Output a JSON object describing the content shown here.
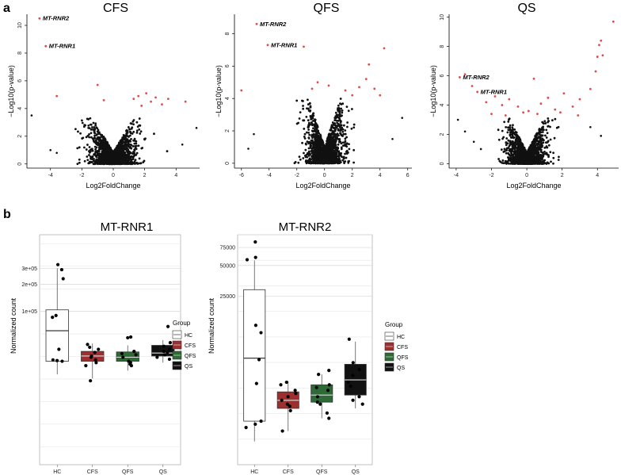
{
  "panels": {
    "a": "a",
    "b": "b"
  },
  "colors": {
    "point": "#111111",
    "sig_point": "#e04b4b",
    "HC": "#ffffff",
    "CFS": "#9e2f2f",
    "QFS": "#2d6a36",
    "QS": "#111111",
    "grid": "#e6e6e6"
  },
  "chart_data": [
    {
      "type": "scatter",
      "title": "CFS",
      "xlabel": "Log2FoldChange",
      "ylabel": "−Log10(p-value)",
      "xlim": [
        -5.5,
        5.5
      ],
      "ylim": [
        -0.3,
        10.8
      ],
      "xticks": [
        -4,
        -2,
        0,
        2,
        4
      ],
      "yticks": [
        0,
        2,
        4,
        6,
        8,
        10
      ],
      "cloud": {
        "spread_x": 1.9,
        "max_y": 3.3
      },
      "significant_points": [
        [
          -4.7,
          10.5
        ],
        [
          -4.3,
          8.5
        ],
        [
          -3.6,
          4.9
        ],
        [
          -1.0,
          5.7
        ],
        [
          -0.6,
          4.6
        ],
        [
          1.3,
          4.7
        ],
        [
          1.6,
          4.9
        ],
        [
          2.1,
          5.1
        ],
        [
          2.4,
          4.5
        ],
        [
          2.7,
          4.8
        ],
        [
          3.1,
          4.3
        ],
        [
          3.5,
          4.7
        ],
        [
          4.6,
          4.5
        ],
        [
          1.8,
          4.2
        ]
      ],
      "extra_points": [
        [
          -5.2,
          3.5
        ],
        [
          5.3,
          2.6
        ],
        [
          -4.0,
          1.0
        ],
        [
          -3.6,
          0.8
        ],
        [
          4.4,
          1.4
        ]
      ],
      "annotations": [
        {
          "label": "MT-RNR2",
          "x": -4.7,
          "y": 10.5
        },
        {
          "label": "MT-RNR1",
          "x": -4.3,
          "y": 8.5
        }
      ]
    },
    {
      "type": "scatter",
      "title": "QFS",
      "xlabel": "Log2FoldChange",
      "ylabel": "−Log10(p-value)",
      "xlim": [
        -6.5,
        6.3
      ],
      "ylim": [
        -0.3,
        9.2
      ],
      "xticks": [
        -6,
        -4,
        -2,
        0,
        2,
        4,
        6
      ],
      "yticks": [
        0,
        2,
        4,
        6,
        8
      ],
      "cloud": {
        "spread_x": 1.7,
        "max_y": 4.0
      },
      "significant_points": [
        [
          -4.9,
          8.6
        ],
        [
          -4.1,
          7.3
        ],
        [
          -1.5,
          7.2
        ],
        [
          -6.0,
          4.5
        ],
        [
          -0.5,
          5.0
        ],
        [
          -0.9,
          4.6
        ],
        [
          0.3,
          4.8
        ],
        [
          1.5,
          4.5
        ],
        [
          2.0,
          4.2
        ],
        [
          2.5,
          4.7
        ],
        [
          3.0,
          5.2
        ],
        [
          3.2,
          6.1
        ],
        [
          3.6,
          4.6
        ],
        [
          4.0,
          4.2
        ],
        [
          4.3,
          7.1
        ]
      ],
      "extra_points": [
        [
          -5.1,
          1.8
        ],
        [
          5.6,
          2.8
        ],
        [
          4.9,
          1.5
        ],
        [
          -5.5,
          0.9
        ]
      ],
      "annotations": [
        {
          "label": "MT-RNR2",
          "x": -4.9,
          "y": 8.6
        },
        {
          "label": "MT-RNR1",
          "x": -4.1,
          "y": 7.3
        }
      ]
    },
    {
      "type": "scatter",
      "title": "QS",
      "xlabel": "Log2FoldChange",
      "ylabel": "−Log10(p-value)",
      "xlim": [
        -4.4,
        5.2
      ],
      "ylim": [
        -0.3,
        10.2
      ],
      "xticks": [
        -4,
        -2,
        0,
        2,
        4
      ],
      "yticks": [
        0,
        2,
        4,
        6,
        8,
        10
      ],
      "cloud": {
        "spread_x": 1.45,
        "max_y": 3.1
      },
      "significant_points": [
        [
          -3.8,
          5.9
        ],
        [
          -3.5,
          6.1
        ],
        [
          -3.1,
          5.3
        ],
        [
          -2.8,
          4.9
        ],
        [
          -2.3,
          4.2
        ],
        [
          -1.8,
          4.6
        ],
        [
          -1.4,
          4.0
        ],
        [
          -1.0,
          4.4
        ],
        [
          -0.5,
          3.9
        ],
        [
          0.4,
          5.8
        ],
        [
          0.8,
          4.1
        ],
        [
          1.2,
          4.5
        ],
        [
          1.6,
          3.7
        ],
        [
          2.1,
          4.8
        ],
        [
          2.6,
          3.9
        ],
        [
          3.0,
          4.4
        ],
        [
          3.6,
          5.1
        ],
        [
          3.9,
          6.3
        ],
        [
          4.0,
          7.3
        ],
        [
          4.1,
          8.1
        ],
        [
          4.2,
          8.4
        ],
        [
          4.3,
          7.4
        ],
        [
          4.9,
          9.7
        ],
        [
          -0.2,
          3.5
        ],
        [
          0.1,
          3.6
        ],
        [
          -2.0,
          3.4
        ],
        [
          1.9,
          3.5
        ],
        [
          2.9,
          3.3
        ],
        [
          -1.2,
          3.3
        ],
        [
          0.6,
          3.4
        ]
      ],
      "extra_points": [
        [
          -3.9,
          3.0
        ],
        [
          -3.5,
          2.2
        ],
        [
          -3.0,
          1.5
        ],
        [
          3.6,
          2.5
        ],
        [
          4.2,
          1.9
        ],
        [
          -2.6,
          1.0
        ]
      ],
      "annotations": [
        {
          "label": "MT-RNR2",
          "x": -3.8,
          "y": 5.9
        },
        {
          "label": "MT-RNR1",
          "x": -2.8,
          "y": 4.9
        }
      ]
    },
    {
      "type": "boxplot",
      "title": "MT-RNR1",
      "ylabel": "Normalized count",
      "categories": [
        "HC",
        "CFS",
        "QFS",
        "QS"
      ],
      "y_tick_labels": [
        "1e+05",
        "2e+05",
        "3e+05"
      ],
      "scale": "log",
      "ylim_log10": [
        3.3,
        5.85
      ],
      "y_tick_values": [
        100000,
        200000,
        300000
      ],
      "boxes": [
        {
          "group": "HC",
          "min": 20000,
          "q1": 28000,
          "median": 61000,
          "q3": 104000,
          "max": 300000
        },
        {
          "group": "CFS",
          "min": 18000,
          "q1": 28000,
          "median": 32000,
          "q3": 36000,
          "max": 44000
        },
        {
          "group": "QFS",
          "min": 22000,
          "q1": 28000,
          "median": 31000,
          "q3": 35500,
          "max": 42000
        },
        {
          "group": "QS",
          "min": 27000,
          "q1": 32000,
          "median": 34500,
          "q3": 42000,
          "max": 48000
        }
      ],
      "points": [
        {
          "group": "HC",
          "values": [
            330000,
            290000,
            230000,
            90000,
            86000,
            38000,
            29000,
            28500,
            28000
          ]
        },
        {
          "group": "CFS",
          "values": [
            43000,
            40000,
            38000,
            35000,
            32000,
            31000,
            29000,
            27000,
            25000,
            17000
          ]
        },
        {
          "group": "QFS",
          "values": [
            52000,
            51000,
            36000,
            34000,
            33000,
            31000,
            28000,
            27000,
            26000,
            25000
          ]
        },
        {
          "group": "QS",
          "values": [
            68000,
            45000,
            41000,
            38000,
            36000,
            35000,
            33000,
            31000,
            29500
          ]
        }
      ]
    },
    {
      "type": "boxplot",
      "title": "MT-RNR2",
      "ylabel": "Normalized count",
      "categories": [
        "HC",
        "CFS",
        "QFS",
        "QS"
      ],
      "y_tick_labels": [
        "25000",
        "50000",
        "75000"
      ],
      "scale": "log",
      "ylim_log10": [
        2.75,
        5.0
      ],
      "y_tick_values": [
        25000,
        50000,
        75000
      ],
      "boxes": [
        {
          "group": "HC",
          "min": 950,
          "q1": 1500,
          "median": 6200,
          "q3": 29000,
          "max": 56000
        },
        {
          "group": "CFS",
          "min": 1200,
          "q1": 2000,
          "median": 2400,
          "q3": 2900,
          "max": 3700
        },
        {
          "group": "QFS",
          "min": 1600,
          "q1": 2300,
          "median": 2700,
          "q3": 3400,
          "max": 4300
        },
        {
          "group": "QS",
          "min": 2000,
          "q1": 2700,
          "median": 3800,
          "q3": 5400,
          "max": 9000
        }
      ],
      "points": [
        {
          "group": "HC",
          "values": [
            85000,
            60000,
            57000,
            13000,
            11000,
            6000,
            3500,
            1500,
            1400,
            1300
          ]
        },
        {
          "group": "CFS",
          "values": [
            3600,
            3400,
            3000,
            2800,
            2600,
            2400,
            2200,
            2100,
            1900,
            1200
          ]
        },
        {
          "group": "QFS",
          "values": [
            4700,
            4300,
            3400,
            3200,
            3000,
            2600,
            2300,
            2200,
            1800,
            1600
          ]
        },
        {
          "group": "QS",
          "values": [
            9500,
            5600,
            4800,
            4200,
            3600,
            3300,
            2600,
            2400,
            2200
          ]
        }
      ]
    }
  ],
  "legend": {
    "title": "Group",
    "items": [
      "HC",
      "CFS",
      "QFS",
      "QS"
    ]
  }
}
